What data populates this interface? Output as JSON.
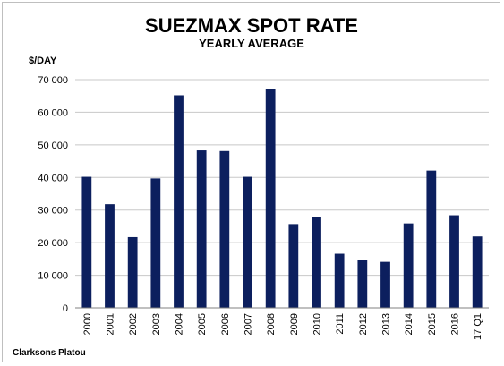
{
  "chart_data": {
    "type": "bar",
    "title": "SUEZMAX SPOT RATE",
    "subtitle": "YEARLY AVERAGE",
    "ylabel": "$/DAY",
    "xlabel": "",
    "categories": [
      "2000",
      "2001",
      "2002",
      "2003",
      "2004",
      "2005",
      "2006",
      "2007",
      "2008",
      "2009",
      "2010",
      "2011",
      "2012",
      "2013",
      "2014",
      "2015",
      "2016",
      "17 Q1"
    ],
    "values": [
      40200,
      31800,
      21700,
      39700,
      65200,
      48300,
      48100,
      40200,
      67000,
      25700,
      27900,
      16600,
      14600,
      14100,
      25900,
      42100,
      28400,
      21900
    ],
    "ylim": [
      0,
      70000
    ],
    "yticks": [
      0,
      10000,
      20000,
      30000,
      40000,
      50000,
      60000,
      70000
    ],
    "ytick_labels": [
      "0",
      "10 000",
      "20 000",
      "30 000",
      "40 000",
      "50 000",
      "60 000",
      "70 000"
    ],
    "grid": true,
    "bar_color": "#0c1f5e",
    "gridline_color": "#c8c8c8",
    "source": "Clarksons Platou"
  }
}
